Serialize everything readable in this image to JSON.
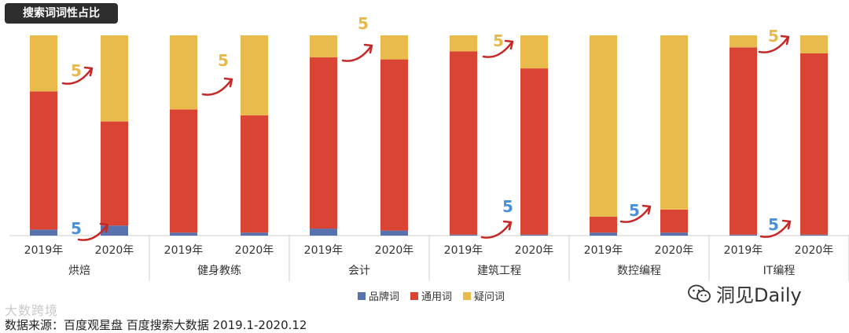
{
  "title": "搜索词词性占比",
  "legend": {
    "items": [
      {
        "key": "brand",
        "label": "品牌词"
      },
      {
        "key": "general",
        "label": "通用词"
      },
      {
        "key": "question",
        "label": "疑问词"
      }
    ]
  },
  "source": "数据来源：百度观星盘 百度搜索大数据 2019.1-2020.12",
  "watermark_left": "大数跨境",
  "watermark_right": "洞见Daily",
  "annotation_label": "5",
  "colors": {
    "brand": "#5872ae",
    "general": "#d94434",
    "question": "#e8bb4c",
    "arrow": "#c62828",
    "label_gold": "#e8b84a",
    "label_blue": "#4a90d9",
    "axis": "#cfcfcf",
    "text": "#333333"
  },
  "chart_data": {
    "type": "bar",
    "stacked": true,
    "normalized": true,
    "ylim": [
      0,
      100
    ],
    "groups": [
      {
        "name": "烘焙",
        "years": [
          "2019年",
          "2020年"
        ],
        "brand": [
          3,
          5
        ],
        "general": [
          69,
          52
        ],
        "question": [
          28,
          43
        ]
      },
      {
        "name": "健身教练",
        "years": [
          "2019年",
          "2020年"
        ],
        "brand": [
          1.5,
          1.5
        ],
        "general": [
          61.5,
          58.5
        ],
        "question": [
          37,
          40
        ]
      },
      {
        "name": "会计",
        "years": [
          "2019年",
          "2020年"
        ],
        "brand": [
          3.5,
          2.5
        ],
        "general": [
          85.5,
          85.5
        ],
        "question": [
          11,
          12
        ]
      },
      {
        "name": "建筑工程",
        "years": [
          "2019年",
          "2020年"
        ],
        "brand": [
          0.5,
          0.5
        ],
        "general": [
          91.5,
          83
        ],
        "question": [
          8,
          16.5
        ]
      },
      {
        "name": "数控编程",
        "years": [
          "2019年",
          "2020年"
        ],
        "brand": [
          1.5,
          1.5
        ],
        "general": [
          8,
          11.5
        ],
        "question": [
          90.5,
          87
        ]
      },
      {
        "name": "IT编程",
        "years": [
          "2019年",
          "2020年"
        ],
        "brand": [
          0.5,
          0.5
        ],
        "general": [
          93.5,
          90.5
        ],
        "question": [
          6,
          9
        ]
      }
    ]
  }
}
